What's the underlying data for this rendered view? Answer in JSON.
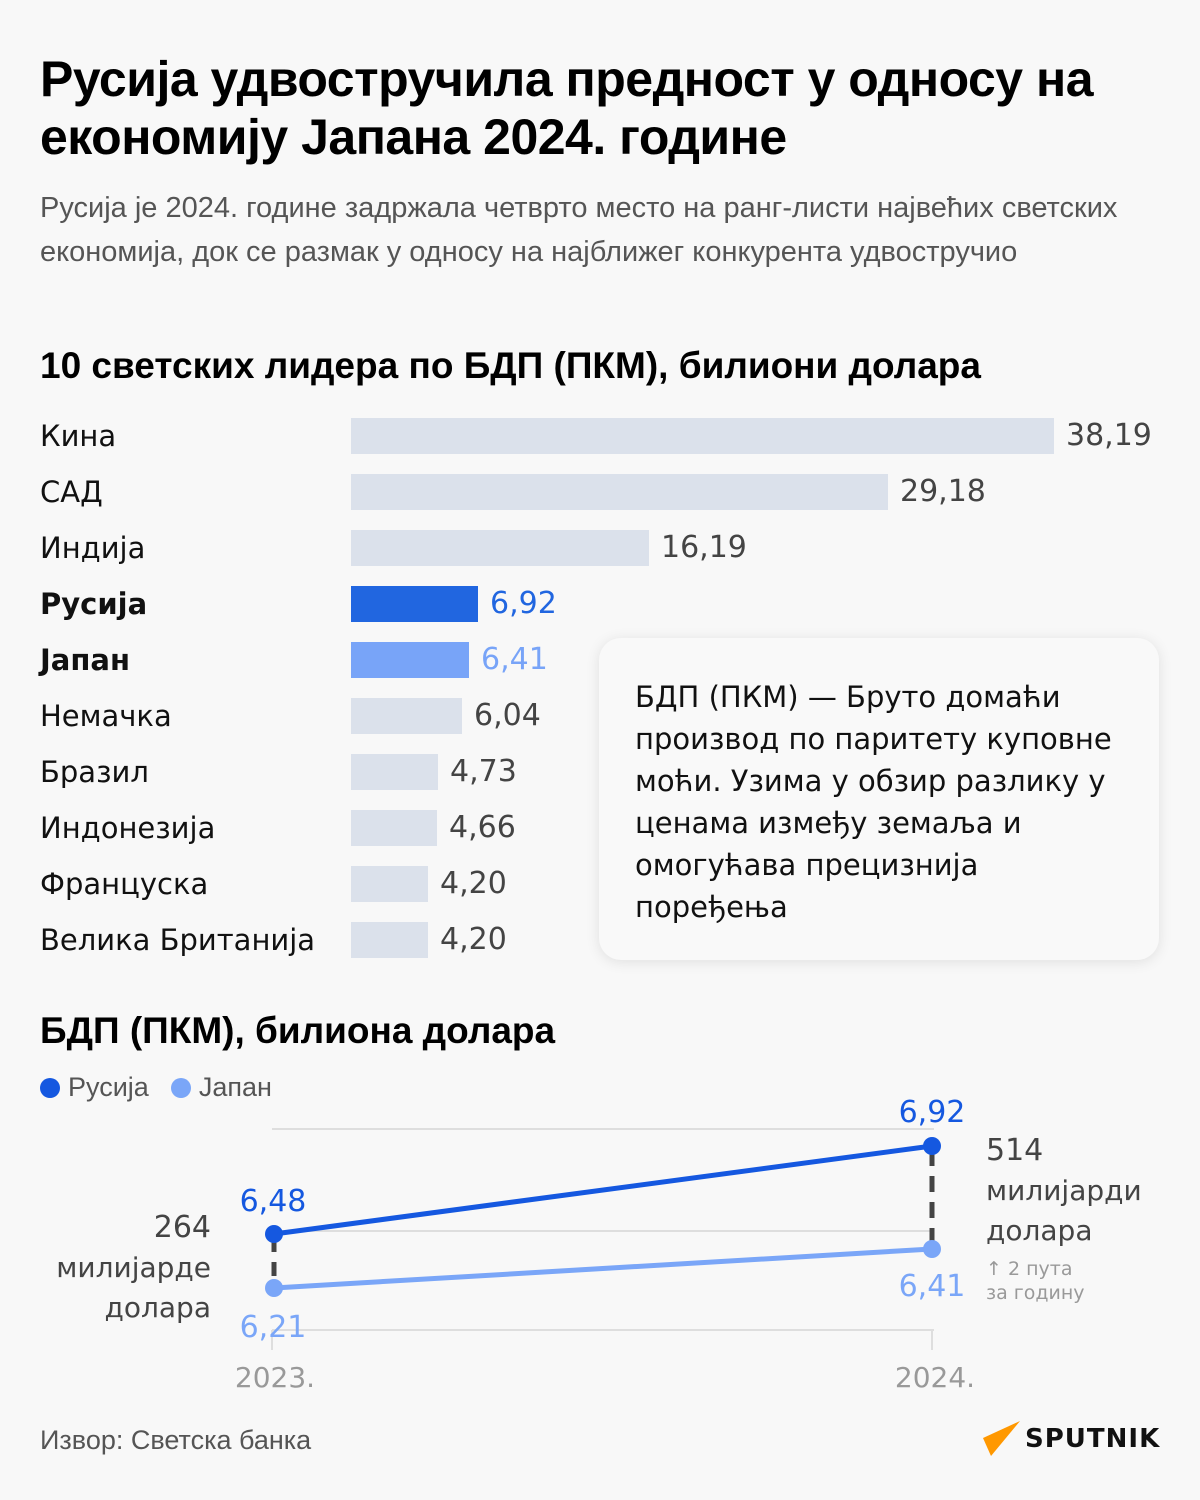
{
  "header": {
    "title": "Русија удвостручила предност у односу на економију Јапана 2024. године",
    "subtitle": "Русија је 2024. године задржала четврто место на ранг-листи највећих светских економија, док се размак у односу на најближег конкурента удвостручио"
  },
  "bar_section": {
    "title": "10 светских лидера по БДП (ПКМ), билиони долара"
  },
  "note": {
    "text": "БДП (ПКМ) — Бруто домаћи производ по паритету куповне моћи. Узима у обзир разлику у ценама између земаља и омогућава прецизнија поређења"
  },
  "line_section": {
    "title": "БДП (ПКМ), билиона долара",
    "legend": [
      {
        "label": "Русија",
        "color": "#1558e0"
      },
      {
        "label": "Јапан",
        "color": "#7aa6f8"
      }
    ],
    "gap_2023": {
      "number": "264",
      "line1": "милијарде",
      "line2": "долара"
    },
    "gap_2024": {
      "number": "514",
      "line1": "милијарди",
      "line2": "долара",
      "growth1": "↑ 2 пута",
      "growth2": "за годину"
    },
    "x_labels": [
      "2023.",
      "2024."
    ],
    "point_labels": {
      "russia_2023": "6,48",
      "russia_2024": "6,92",
      "japan_2023": "6,21",
      "japan_2024": "6,41"
    }
  },
  "footer": {
    "source": "Извор: Светска банка",
    "logo": "SPUTNIK"
  },
  "colors": {
    "russia": "#2166e0",
    "japan": "#78a4f8",
    "other_bar": "#dbe1eb",
    "logo_orange": "#ff9800"
  },
  "chart_data": [
    {
      "type": "bar",
      "orientation": "horizontal",
      "title": "10 светских лидера по БДП (ПКМ), билиони долара",
      "categories": [
        "Кина",
        "САД",
        "Индија",
        "Русија",
        "Јапан",
        "Немачка",
        "Бразил",
        "Индонезија",
        "Француска",
        "Велика Британија"
      ],
      "values": [
        38.19,
        29.18,
        16.19,
        6.92,
        6.41,
        6.04,
        4.73,
        4.66,
        4.2,
        4.2
      ],
      "value_labels": [
        "38,19",
        "29,18",
        "16,19",
        "6,92",
        "6,41",
        "6,04",
        "4,73",
        "4,66",
        "4,20",
        "4,20"
      ],
      "highlight": {
        "Русија": "#2166e0",
        "Јапан": "#78a4f8"
      },
      "xlabel": "",
      "ylabel": "",
      "grid": false
    },
    {
      "type": "line",
      "title": "БДП (ПКМ), билиона долара",
      "x": [
        "2023.",
        "2024."
      ],
      "series": [
        {
          "name": "Русија",
          "values": [
            6.48,
            6.92
          ],
          "color": "#1558e0"
        },
        {
          "name": "Јапан",
          "values": [
            6.21,
            6.41
          ],
          "color": "#7aa6f8"
        }
      ],
      "annotations": [
        {
          "x": "2023.",
          "text": "264 милијарде долара"
        },
        {
          "x": "2024.",
          "text": "514 милијарди долара"
        },
        {
          "x": "2024.",
          "text": "↑ 2 пута за годину"
        }
      ],
      "legend_position": "top-left",
      "grid": true
    }
  ]
}
